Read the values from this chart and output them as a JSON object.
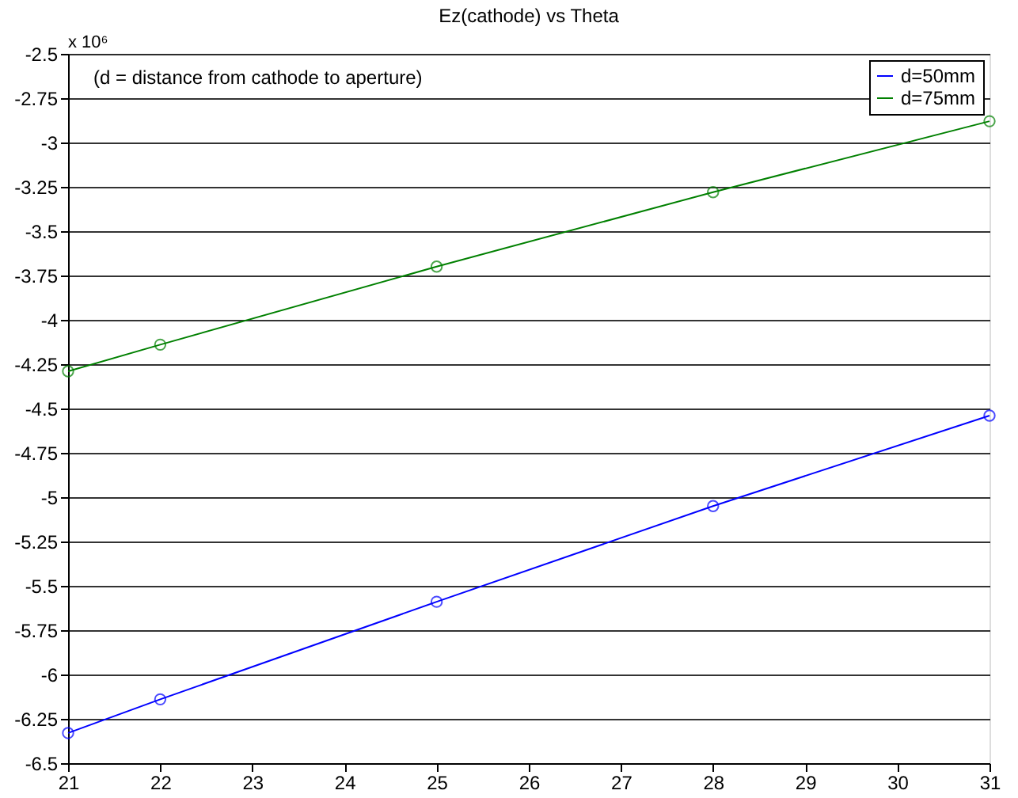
{
  "chart_data": {
    "type": "line",
    "title": "Ez(cathode) vs Theta",
    "annotations": [
      "x 10⁶",
      "(d = distance from cathode to aperture)"
    ],
    "x": [
      21,
      22,
      25,
      28,
      31
    ],
    "series": [
      {
        "name": "d=50mm",
        "color": "#0000ff",
        "values": [
          -6.33,
          -6.14,
          -5.59,
          -5.05,
          -4.54
        ]
      },
      {
        "name": "d=75mm",
        "color": "#008000",
        "values": [
          -4.29,
          -4.14,
          -3.7,
          -3.28,
          -2.88
        ]
      }
    ],
    "xlim": [
      21,
      31
    ],
    "xticks": [
      21,
      22,
      23,
      24,
      25,
      26,
      27,
      28,
      29,
      30,
      31
    ],
    "ylim": [
      -6.5,
      -2.5
    ],
    "yticks": [
      -6.5,
      -6.25,
      -6,
      -5.75,
      -5.5,
      -5.25,
      -5,
      -4.75,
      -4.5,
      -4.25,
      -4,
      -3.75,
      -3.5,
      -3.25,
      -3,
      -2.75,
      -2.5
    ],
    "grid": "y",
    "legend": "top right",
    "marker": "circle",
    "line_style": "solid"
  }
}
